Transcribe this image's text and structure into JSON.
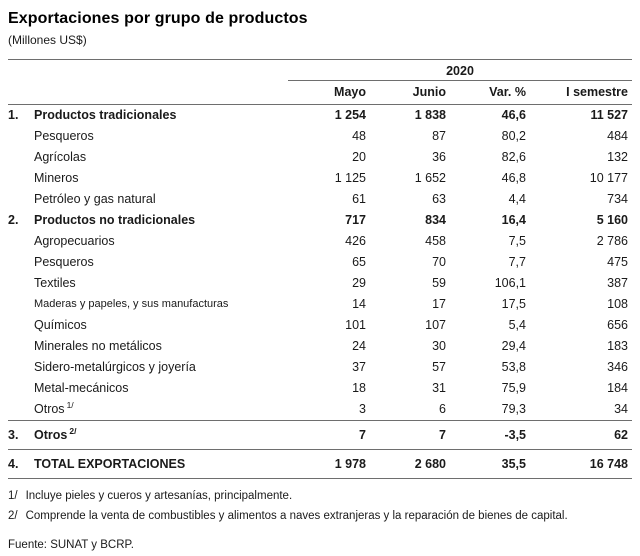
{
  "page": {
    "title": "Exportaciones por grupo de productos",
    "subtitle": "(Millones US$)"
  },
  "table": {
    "year_header": "2020",
    "columns": [
      "Mayo",
      "Junio",
      "Var. %",
      "I semestre"
    ],
    "rows": [
      {
        "num": "1.",
        "label": "Productos tradicionales",
        "bold": true,
        "values": [
          "1 254",
          "1 838",
          "46,6",
          "11 527"
        ]
      },
      {
        "label": "Pesqueros",
        "values": [
          "48",
          "87",
          "80,2",
          "484"
        ]
      },
      {
        "label": "Agrícolas",
        "values": [
          "20",
          "36",
          "82,6",
          "132"
        ]
      },
      {
        "label": "Mineros",
        "values": [
          "1 125",
          "1 652",
          "46,8",
          "10 177"
        ]
      },
      {
        "label": "Petróleo y gas natural",
        "values": [
          "61",
          "63",
          "4,4",
          "734"
        ]
      },
      {
        "num": "2.",
        "label": "Productos no tradicionales",
        "bold": true,
        "values": [
          "717",
          "834",
          "16,4",
          "5 160"
        ]
      },
      {
        "label": "Agropecuarios",
        "values": [
          "426",
          "458",
          "7,5",
          "2 786"
        ]
      },
      {
        "label": "Pesqueros",
        "values": [
          "65",
          "70",
          "7,7",
          "475"
        ]
      },
      {
        "label": "Textiles",
        "values": [
          "29",
          "59",
          "106,1",
          "387"
        ]
      },
      {
        "label": "Maderas y papeles, y sus manufacturas",
        "small": true,
        "values": [
          "14",
          "17",
          "17,5",
          "108"
        ]
      },
      {
        "label": "Químicos",
        "values": [
          "101",
          "107",
          "5,4",
          "656"
        ]
      },
      {
        "label": "Minerales no metálicos",
        "values": [
          "24",
          "30",
          "29,4",
          "183"
        ]
      },
      {
        "label": "Sidero-metalúrgicos y joyería",
        "values": [
          "37",
          "57",
          "53,8",
          "346"
        ]
      },
      {
        "label": "Metal-mecánicos",
        "values": [
          "18",
          "31",
          "75,9",
          "184"
        ]
      },
      {
        "label": "Otros",
        "sup": "1/",
        "values": [
          "3",
          "6",
          "79,3",
          "34"
        ]
      },
      {
        "num": "3.",
        "label": "Otros",
        "sup": "2/",
        "bold": true,
        "rule_above": true,
        "values": [
          "7",
          "7",
          "-3,5",
          "62"
        ]
      },
      {
        "num": "4.",
        "label": "TOTAL EXPORTACIONES",
        "bold": true,
        "rule_above": true,
        "values": [
          "1 978",
          "2 680",
          "35,5",
          "16 748"
        ]
      }
    ]
  },
  "footnotes": [
    {
      "marker": "1/",
      "text": "Incluye pieles y cueros y artesanías, principalmente."
    },
    {
      "marker": "2/",
      "text": "Comprende la venta de combustibles y alimentos a naves extranjeras y la reparación de bienes de capital."
    }
  ],
  "source": "Fuente: SUNAT y BCRP."
}
